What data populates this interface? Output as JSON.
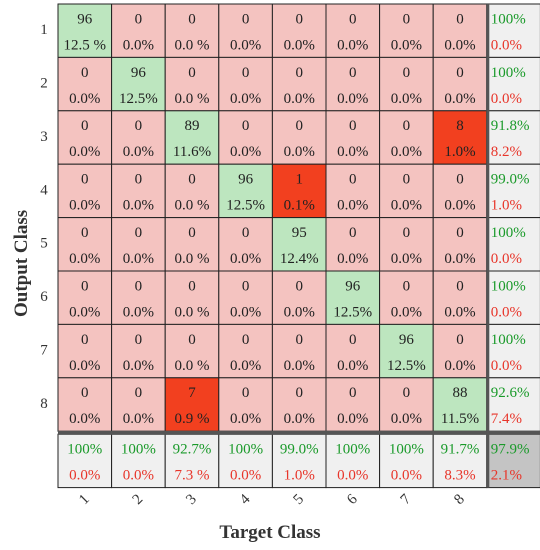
{
  "chart_data": {
    "type": "heatmap",
    "xlabel": "Target Class",
    "ylabel": "Output Class",
    "x_tick_labels": [
      "1",
      "2",
      "3",
      "4",
      "5",
      "6",
      "7",
      "8"
    ],
    "y_tick_labels": [
      "1",
      "2",
      "3",
      "4",
      "5",
      "6",
      "7",
      "8"
    ],
    "cells": [
      [
        {
          "count": "96",
          "pct": "12.5 %"
        },
        {
          "count": "0",
          "pct": "0.0%"
        },
        {
          "count": "0",
          "pct": "0.0 %"
        },
        {
          "count": "0",
          "pct": "0.0%"
        },
        {
          "count": "0",
          "pct": "0.0%"
        },
        {
          "count": "0",
          "pct": "0.0%"
        },
        {
          "count": "0",
          "pct": "0.0%"
        },
        {
          "count": "0",
          "pct": "0.0%"
        }
      ],
      [
        {
          "count": "0",
          "pct": "0.0%"
        },
        {
          "count": "96",
          "pct": "12.5%"
        },
        {
          "count": "0",
          "pct": "0.0 %"
        },
        {
          "count": "0",
          "pct": "0.0%"
        },
        {
          "count": "0",
          "pct": "0.0%"
        },
        {
          "count": "0",
          "pct": "0.0%"
        },
        {
          "count": "0",
          "pct": "0.0%"
        },
        {
          "count": "0",
          "pct": "0.0%"
        }
      ],
      [
        {
          "count": "0",
          "pct": "0.0%"
        },
        {
          "count": "0",
          "pct": "0.0%"
        },
        {
          "count": "89",
          "pct": "11.6%"
        },
        {
          "count": "0",
          "pct": "0.0%"
        },
        {
          "count": "0",
          "pct": "0.0%"
        },
        {
          "count": "0",
          "pct": "0.0%"
        },
        {
          "count": "0",
          "pct": "0.0%"
        },
        {
          "count": "8",
          "pct": "1.0%"
        }
      ],
      [
        {
          "count": "0",
          "pct": "0.0%"
        },
        {
          "count": "0",
          "pct": "0.0%"
        },
        {
          "count": "0",
          "pct": "0.0 %"
        },
        {
          "count": "96",
          "pct": "12.5%"
        },
        {
          "count": "1",
          "pct": "0.1%"
        },
        {
          "count": "0",
          "pct": "0.0%"
        },
        {
          "count": "0",
          "pct": "0.0%"
        },
        {
          "count": "0",
          "pct": "0.0%"
        }
      ],
      [
        {
          "count": "0",
          "pct": "0.0%"
        },
        {
          "count": "0",
          "pct": "0.0%"
        },
        {
          "count": "0",
          "pct": "0.0 %"
        },
        {
          "count": "0",
          "pct": "0.0%"
        },
        {
          "count": "95",
          "pct": "12.4%"
        },
        {
          "count": "0",
          "pct": "0.0%"
        },
        {
          "count": "0",
          "pct": "0.0%"
        },
        {
          "count": "0",
          "pct": "0.0%"
        }
      ],
      [
        {
          "count": "0",
          "pct": "0.0%"
        },
        {
          "count": "0",
          "pct": "0.0%"
        },
        {
          "count": "0",
          "pct": "0.0 %"
        },
        {
          "count": "0",
          "pct": "0.0%"
        },
        {
          "count": "0",
          "pct": "0.0%"
        },
        {
          "count": "96",
          "pct": "12.5%"
        },
        {
          "count": "0",
          "pct": "0.0%"
        },
        {
          "count": "0",
          "pct": "0.0%"
        }
      ],
      [
        {
          "count": "0",
          "pct": "0.0%"
        },
        {
          "count": "0",
          "pct": "0.0%"
        },
        {
          "count": "0",
          "pct": "0.0 %"
        },
        {
          "count": "0",
          "pct": "0.0%"
        },
        {
          "count": "0",
          "pct": "0.0%"
        },
        {
          "count": "0",
          "pct": "0.0%"
        },
        {
          "count": "96",
          "pct": "12.5%"
        },
        {
          "count": "0",
          "pct": "0.0%"
        }
      ],
      [
        {
          "count": "0",
          "pct": "0.0%"
        },
        {
          "count": "0",
          "pct": "0.0%"
        },
        {
          "count": "7",
          "pct": "0.9 %"
        },
        {
          "count": "0",
          "pct": "0.0%"
        },
        {
          "count": "0",
          "pct": "0.0%"
        },
        {
          "count": "0",
          "pct": "0.0%"
        },
        {
          "count": "0",
          "pct": "0.0%"
        },
        {
          "count": "88",
          "pct": "11.5%"
        }
      ]
    ],
    "row_summary": [
      {
        "correct": "100%",
        "error": "0.0%"
      },
      {
        "correct": "100%",
        "error": "0.0%"
      },
      {
        "correct": "91.8%",
        "error": "8.2%"
      },
      {
        "correct": "99.0%",
        "error": "1.0%"
      },
      {
        "correct": "100%",
        "error": "0.0%"
      },
      {
        "correct": "100%",
        "error": "0.0%"
      },
      {
        "correct": "100%",
        "error": "0.0%"
      },
      {
        "correct": "92.6%",
        "error": "7.4%"
      }
    ],
    "col_summary": [
      {
        "correct": "100%",
        "error": "0.0%"
      },
      {
        "correct": "100%",
        "error": "0.0%"
      },
      {
        "correct": "92.7%",
        "error": "7.3 %"
      },
      {
        "correct": "100%",
        "error": "0.0%"
      },
      {
        "correct": "99.0%",
        "error": "1.0%"
      },
      {
        "correct": "100%",
        "error": "0.0%"
      },
      {
        "correct": "100%",
        "error": "0.0%"
      },
      {
        "correct": "91.7%",
        "error": "8.3%"
      }
    ],
    "overall": {
      "correct": "97.9%",
      "error": "2.1%"
    },
    "colors": {
      "diagonal": "#bde6bf",
      "offdiagonal_zero": "#f4c3c0",
      "offdiagonal_error": "#f2401f",
      "summary": "#f0f0f0",
      "overall": "#c4c4c4",
      "correct_text": "#1a9a2a",
      "error_text": "#e8352a",
      "cell_text": "#222222",
      "grid": "#222222"
    }
  }
}
